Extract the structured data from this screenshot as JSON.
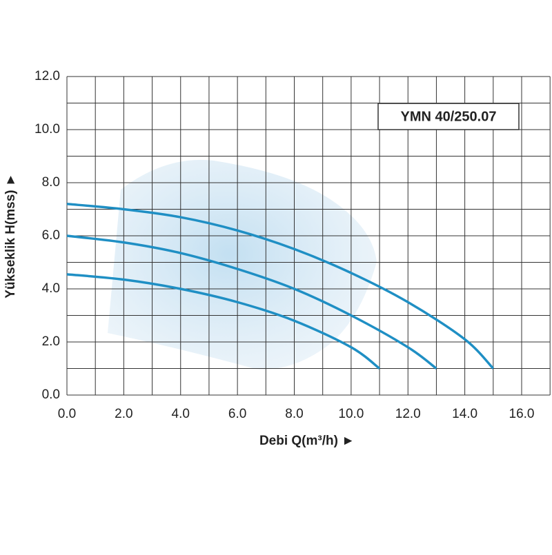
{
  "chart_data": {
    "type": "line",
    "title": "YMN 40/250.07",
    "x_label": "Debi Q(m³/h) ►",
    "y_label": "Yükseklik H(mss) ►",
    "xlim": [
      0,
      17
    ],
    "ylim": [
      0,
      12
    ],
    "xticks": [
      {
        "value": 0,
        "label": "0.0"
      },
      {
        "value": 2,
        "label": "2.0"
      },
      {
        "value": 4,
        "label": "4.0"
      },
      {
        "value": 6,
        "label": "6.0"
      },
      {
        "value": 8,
        "label": "8.0"
      },
      {
        "value": 10,
        "label": "10.0"
      },
      {
        "value": 12,
        "label": "12.0"
      },
      {
        "value": 14,
        "label": "14.0"
      },
      {
        "value": 16,
        "label": "16.0"
      }
    ],
    "xgrid_minor": [
      1,
      3,
      5,
      7,
      9,
      11,
      13,
      15,
      17
    ],
    "yticks": [
      {
        "value": 0,
        "label": "0.0"
      },
      {
        "value": 2,
        "label": "2.0"
      },
      {
        "value": 4,
        "label": "4.0"
      },
      {
        "value": 6,
        "label": "6.0"
      },
      {
        "value": 8,
        "label": "8.0"
      },
      {
        "value": 10,
        "label": "10.0"
      },
      {
        "value": 12,
        "label": "12.0"
      }
    ],
    "ygrid_minor": [
      1,
      3,
      5,
      7,
      9,
      11
    ],
    "grid": true,
    "series": [
      {
        "color": "#1f8fc4",
        "x": [
          0,
          2,
          4,
          6,
          8,
          10,
          12,
          14,
          15
        ],
        "values": [
          7.2,
          7.0,
          6.7,
          6.2,
          5.5,
          4.6,
          3.5,
          2.1,
          1.0
        ]
      },
      {
        "color": "#1f8fc4",
        "x": [
          0,
          2,
          4,
          6,
          8,
          10,
          12,
          13
        ],
        "values": [
          6.0,
          5.75,
          5.35,
          4.75,
          4.0,
          3.0,
          1.8,
          1.0
        ]
      },
      {
        "color": "#1f8fc4",
        "x": [
          0,
          2,
          4,
          6,
          8,
          10,
          11
        ],
        "values": [
          4.55,
          4.35,
          4.0,
          3.5,
          2.8,
          1.8,
          1.0
        ]
      }
    ]
  }
}
